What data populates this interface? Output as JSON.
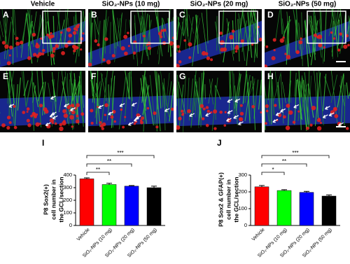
{
  "figure": {
    "columns": [
      "Vehicle",
      "SiO₂-NPs (10 mg)",
      "SiO₂-NPs (20 mg)",
      "SiO₂-NPs (50 mg)"
    ],
    "panels": [
      "A",
      "B",
      "C",
      "D",
      "E",
      "F",
      "G",
      "H"
    ]
  },
  "chart_data": [
    {
      "type": "bar",
      "panel": "I",
      "y_label": [
        "P8 Sox2(+)",
        "cell number in",
        "the GCL/section"
      ],
      "categories": [
        "Vehicle",
        "SiO₂-NPs (10 mg)",
        "SiO₂-NPs (20 mg)",
        "SiO₂-NPs (50 mg)"
      ],
      "values": [
        370,
        325,
        312,
        300
      ],
      "errors": [
        8,
        10,
        5,
        12
      ],
      "colors": [
        "#ff0000",
        "#00ff00",
        "#0000ff",
        "#000000"
      ],
      "ylim": [
        0,
        400
      ],
      "yticks": [
        0,
        100,
        200,
        300,
        400
      ],
      "significance": [
        "**",
        "**",
        "***"
      ]
    },
    {
      "type": "bar",
      "panel": "J",
      "y_label": [
        "P8 Sox2 & GFAP(+)",
        "cell number in",
        "the GCL/section"
      ],
      "categories": [
        "Vehicle",
        "SiO₂-NPs (10 mg)",
        "SiO₂-NPs (20 mg)",
        "SiO₂-NPs (50 mg)"
      ],
      "values": [
        230,
        208,
        197,
        175
      ],
      "errors": [
        8,
        5,
        6,
        7
      ],
      "colors": [
        "#ff0000",
        "#00ff00",
        "#0000ff",
        "#000000"
      ],
      "ylim": [
        0,
        300
      ],
      "yticks": [
        0,
        100,
        200,
        300
      ],
      "significance": [
        "*",
        "**",
        "***"
      ]
    }
  ]
}
